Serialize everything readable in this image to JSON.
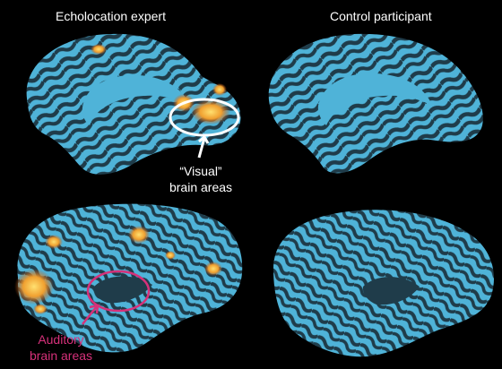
{
  "headings": {
    "left": "Echolocation expert",
    "right": "Control participant"
  },
  "annotations": {
    "visual": {
      "line1": "“Visual”",
      "line2": "brain areas",
      "color": "#ffffff"
    },
    "auditory": {
      "line1": "Auditory",
      "line2": "brain areas",
      "color": "#d6317a"
    }
  },
  "colors": {
    "background": "#000000",
    "cortex_light": "#4fb3d8",
    "cortex_dark": "#1f3c4a",
    "activation_core": "#ffd060",
    "activation_edge": "#e07020"
  }
}
